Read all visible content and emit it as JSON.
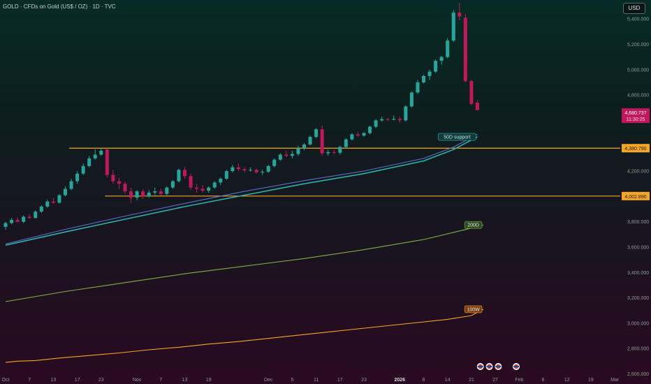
{
  "header": {
    "title": "GOLD · CFDs on Gold (US$ / OZ) · 1D · TVC",
    "currency_button": "USD"
  },
  "colors": {
    "up": "#26a69a",
    "down": "#c2185b",
    "level": "#f5a623",
    "ma_teal": "#2ab3a6",
    "ma_blue": "#5a6fd0",
    "ma200": "#7cb342",
    "ma100w": "#f5a623"
  },
  "chart_data": {
    "type": "candlestick",
    "title": "GOLD · CFDs on Gold (US$ / OZ) · 1D · TVC",
    "ylim": [
      2520,
      5550
    ],
    "y_ticks": [
      2600,
      2800,
      3000,
      3200,
      3400,
      3600,
      3800,
      4000,
      4200,
      4400,
      4600,
      4800,
      5000,
      5200,
      5400
    ],
    "y_tick_labels": [
      "2,600.000",
      "2,800.000",
      "3,000.000",
      "3,200.000",
      "3,400.000",
      "3,600.000",
      "3,800.000",
      "4,000.000",
      "4,200.000",
      "4,400.000",
      "4,600.000",
      "4,800.000",
      "5,000.000",
      "5,200.000",
      "5,400.000"
    ],
    "x_ticks": [
      {
        "label": "Oct",
        "bar": 0
      },
      {
        "label": "7",
        "bar": 4
      },
      {
        "label": "13",
        "bar": 8
      },
      {
        "label": "17",
        "bar": 12
      },
      {
        "label": "23",
        "bar": 16
      },
      {
        "label": "Nov",
        "bar": 22
      },
      {
        "label": "7",
        "bar": 26
      },
      {
        "label": "13",
        "bar": 30
      },
      {
        "label": "19",
        "bar": 34
      },
      {
        "label": "Dec",
        "bar": 44
      },
      {
        "label": "5",
        "bar": 48
      },
      {
        "label": "11",
        "bar": 52
      },
      {
        "label": "17",
        "bar": 56
      },
      {
        "label": "23",
        "bar": 60
      },
      {
        "label": "2026",
        "bar": 66,
        "bold": true
      },
      {
        "label": "8",
        "bar": 70
      },
      {
        "label": "14",
        "bar": 74
      },
      {
        "label": "21",
        "bar": 78
      },
      {
        "label": "27",
        "bar": 82
      },
      {
        "label": "Feb",
        "bar": 86
      },
      {
        "label": "6",
        "bar": 90
      },
      {
        "label": "12",
        "bar": 94
      },
      {
        "label": "19",
        "bar": 98
      },
      {
        "label": "Mar",
        "bar": 102
      }
    ],
    "candles": [
      [
        3760,
        3800,
        3740,
        3790
      ],
      [
        3790,
        3830,
        3780,
        3815
      ],
      [
        3815,
        3835,
        3795,
        3800
      ],
      [
        3800,
        3850,
        3790,
        3840
      ],
      [
        3840,
        3860,
        3825,
        3830
      ],
      [
        3830,
        3890,
        3825,
        3880
      ],
      [
        3880,
        3930,
        3870,
        3920
      ],
      [
        3920,
        3975,
        3910,
        3960
      ],
      [
        3960,
        3990,
        3945,
        3950
      ],
      [
        3950,
        4020,
        3945,
        4010
      ],
      [
        4010,
        4080,
        4000,
        4060
      ],
      [
        4060,
        4140,
        4050,
        4120
      ],
      [
        4120,
        4200,
        4100,
        4180
      ],
      [
        4180,
        4260,
        4170,
        4240
      ],
      [
        4240,
        4320,
        4230,
        4300
      ],
      [
        4300,
        4370,
        4290,
        4330
      ],
      [
        4330,
        4380,
        4320,
        4360
      ],
      [
        4370,
        4380,
        4150,
        4170
      ],
      [
        4170,
        4210,
        4100,
        4120
      ],
      [
        4120,
        4150,
        4060,
        4100
      ],
      [
        4100,
        4120,
        4020,
        4040
      ],
      [
        4040,
        4070,
        3950,
        3990
      ],
      [
        3990,
        4050,
        3970,
        4040
      ],
      [
        4040,
        4060,
        3980,
        4000
      ],
      [
        4000,
        4050,
        3990,
        4030
      ],
      [
        4030,
        4070,
        4010,
        4040
      ],
      [
        4040,
        4060,
        4005,
        4020
      ],
      [
        4020,
        4080,
        4010,
        4070
      ],
      [
        4070,
        4130,
        4060,
        4120
      ],
      [
        4120,
        4220,
        4110,
        4210
      ],
      [
        4210,
        4230,
        4140,
        4160
      ],
      [
        4160,
        4180,
        4050,
        4070
      ],
      [
        4070,
        4100,
        4030,
        4060
      ],
      [
        4060,
        4090,
        4030,
        4045
      ],
      [
        4045,
        4080,
        4030,
        4070
      ],
      [
        4070,
        4120,
        4060,
        4110
      ],
      [
        4110,
        4150,
        4090,
        4140
      ],
      [
        4140,
        4210,
        4130,
        4200
      ],
      [
        4200,
        4250,
        4190,
        4230
      ],
      [
        4230,
        4260,
        4200,
        4215
      ],
      [
        4215,
        4230,
        4190,
        4205
      ],
      [
        4205,
        4230,
        4195,
        4210
      ],
      [
        4210,
        4220,
        4180,
        4190
      ],
      [
        4190,
        4210,
        4170,
        4195
      ],
      [
        4195,
        4250,
        4185,
        4240
      ],
      [
        4240,
        4300,
        4230,
        4290
      ],
      [
        4290,
        4340,
        4280,
        4330
      ],
      [
        4330,
        4360,
        4310,
        4320
      ],
      [
        4320,
        4360,
        4300,
        4335
      ],
      [
        4335,
        4400,
        4320,
        4380
      ],
      [
        4380,
        4420,
        4365,
        4410
      ],
      [
        4410,
        4480,
        4400,
        4470
      ],
      [
        4470,
        4540,
        4460,
        4530
      ],
      [
        4530,
        4560,
        4320,
        4340
      ],
      [
        4340,
        4370,
        4320,
        4350
      ],
      [
        4350,
        4370,
        4330,
        4345
      ],
      [
        4345,
        4400,
        4330,
        4390
      ],
      [
        4390,
        4460,
        4380,
        4450
      ],
      [
        4450,
        4500,
        4440,
        4490
      ],
      [
        4490,
        4510,
        4470,
        4480
      ],
      [
        4480,
        4510,
        4470,
        4500
      ],
      [
        4500,
        4560,
        4490,
        4550
      ],
      [
        4550,
        4610,
        4540,
        4600
      ],
      [
        4600,
        4630,
        4590,
        4610
      ],
      [
        4610,
        4620,
        4595,
        4605
      ],
      [
        4605,
        4640,
        4600,
        4612
      ],
      [
        4612,
        4630,
        4580,
        4600
      ],
      [
        4600,
        4720,
        4590,
        4710
      ],
      [
        4710,
        4830,
        4700,
        4820
      ],
      [
        4820,
        4920,
        4810,
        4900
      ],
      [
        4900,
        4960,
        4890,
        4950
      ],
      [
        4950,
        5000,
        4920,
        4985
      ],
      [
        4985,
        5080,
        4975,
        5070
      ],
      [
        5070,
        5110,
        5040,
        5100
      ],
      [
        5100,
        5250,
        5090,
        5230
      ],
      [
        5230,
        5470,
        5220,
        5450
      ],
      [
        5450,
        5530,
        5390,
        5420
      ],
      [
        5410,
        5440,
        4900,
        4910
      ],
      [
        4910,
        4920,
        4720,
        4730
      ],
      [
        4740,
        4760,
        4680,
        4681
      ]
    ],
    "last_price": "4,680.737",
    "countdown": "11:30:25",
    "levels": [
      {
        "name": "upper-level",
        "price": 4380.79,
        "label": "4,380.790",
        "start_bar": 11
      },
      {
        "name": "lower-level",
        "price": 4002.89,
        "label": "4,002.890",
        "start_bar": 17
      }
    ],
    "moving_averages": [
      {
        "name": "50D",
        "label": "50D support",
        "points": [
          [
            0,
            3615
          ],
          [
            10,
            3720
          ],
          [
            20,
            3820
          ],
          [
            30,
            3920
          ],
          [
            40,
            4010
          ],
          [
            50,
            4100
          ],
          [
            60,
            4180
          ],
          [
            70,
            4280
          ],
          [
            75,
            4370
          ],
          [
            79,
            4470
          ]
        ]
      },
      {
        "name": "50D-blue",
        "points": [
          [
            0,
            3625
          ],
          [
            10,
            3740
          ],
          [
            20,
            3845
          ],
          [
            30,
            3945
          ],
          [
            40,
            4040
          ],
          [
            50,
            4125
          ],
          [
            60,
            4200
          ],
          [
            70,
            4300
          ],
          [
            75,
            4390
          ],
          [
            79,
            4490
          ]
        ]
      },
      {
        "name": "200D",
        "label": "200D",
        "points": [
          [
            0,
            3170
          ],
          [
            10,
            3250
          ],
          [
            20,
            3320
          ],
          [
            30,
            3390
          ],
          [
            40,
            3450
          ],
          [
            50,
            3510
          ],
          [
            60,
            3580
          ],
          [
            70,
            3660
          ],
          [
            78,
            3750
          ],
          [
            80,
            3775
          ]
        ]
      },
      {
        "name": "100W",
        "label": "100W",
        "points": [
          [
            0,
            2690
          ],
          [
            2,
            2700
          ],
          [
            5,
            2705
          ],
          [
            9,
            2725
          ],
          [
            14,
            2745
          ],
          [
            19,
            2765
          ],
          [
            24,
            2790
          ],
          [
            29,
            2810
          ],
          [
            34,
            2835
          ],
          [
            39,
            2855
          ],
          [
            44,
            2880
          ],
          [
            49,
            2905
          ],
          [
            54,
            2930
          ],
          [
            59,
            2955
          ],
          [
            64,
            2980
          ],
          [
            69,
            3005
          ],
          [
            74,
            3030
          ],
          [
            78,
            3060
          ],
          [
            80,
            3110
          ]
        ]
      }
    ],
    "event_markers": [
      {
        "name": "us-flag-event",
        "bar": 79.5
      },
      {
        "name": "us-flag-event",
        "bar": 81
      },
      {
        "name": "us-flag-event",
        "bar": 82.5
      },
      {
        "name": "us-flag-event",
        "bar": 85.5
      }
    ]
  }
}
